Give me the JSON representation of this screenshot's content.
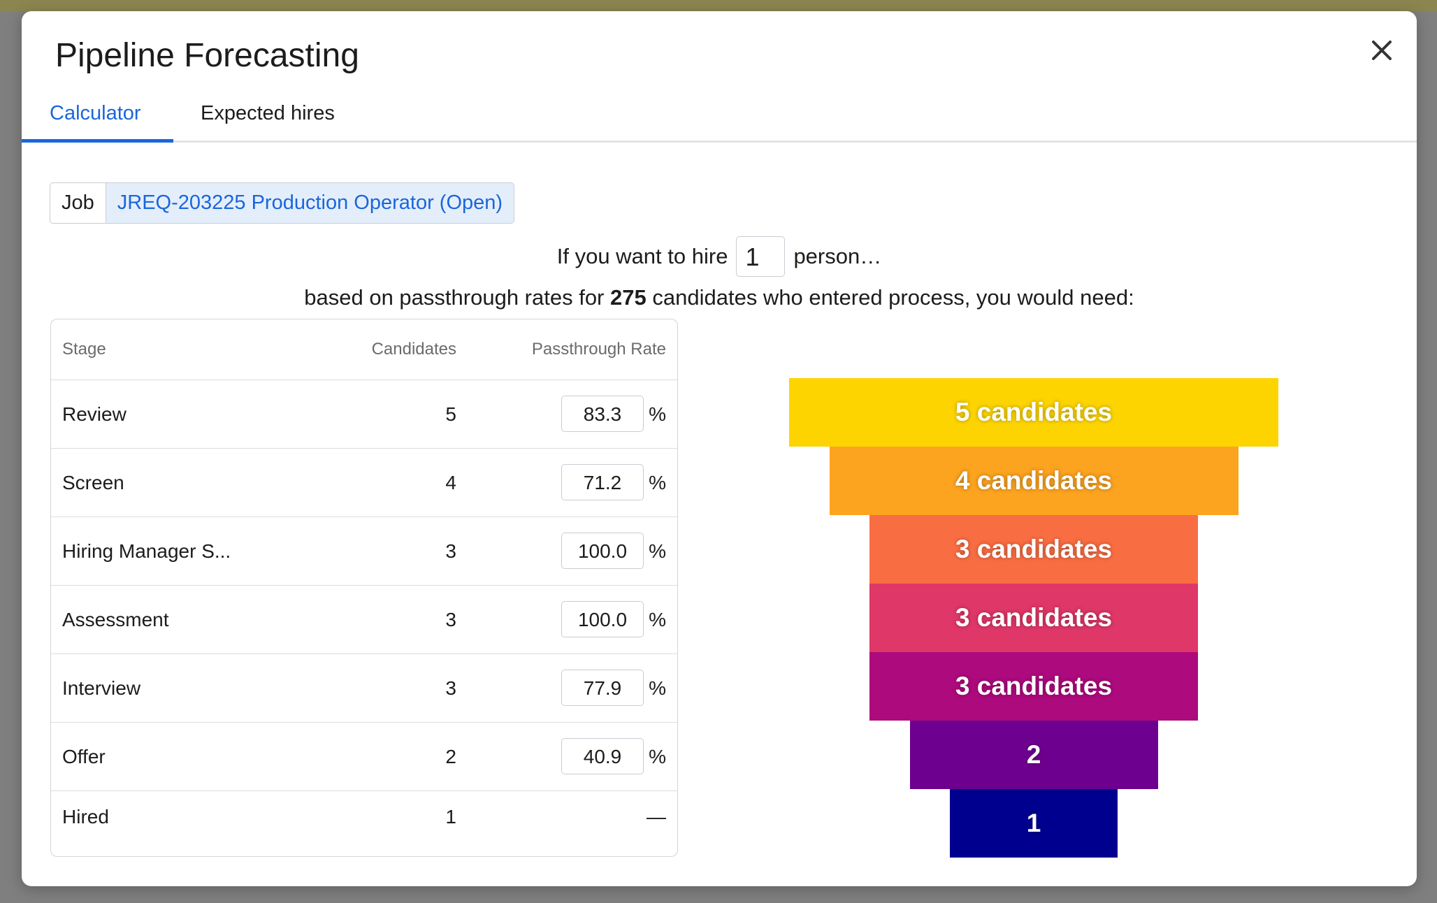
{
  "modal": {
    "title": "Pipeline Forecasting",
    "tabs": [
      "Calculator",
      "Expected hires"
    ]
  },
  "job": {
    "label": "Job",
    "value": "JREQ-203225 Production Operator (Open)"
  },
  "hire": {
    "prefix": "If you want to hire",
    "count": 1,
    "suffix": "person…"
  },
  "basis": {
    "prefix": "based on passthrough rates for",
    "total": 275,
    "suffix": "candidates who entered process, you would need:"
  },
  "table": {
    "headers": [
      "Stage",
      "Candidates",
      "Passthrough Rate"
    ],
    "percent": "%",
    "rows": [
      [
        "Review",
        5,
        "83.3"
      ],
      [
        "Screen",
        4,
        "71.2"
      ],
      [
        "Hiring Manager S...",
        3,
        "100.0"
      ],
      [
        "Assessment",
        3,
        "100.0"
      ],
      [
        "Interview",
        3,
        "77.9"
      ],
      [
        "Offer",
        2,
        "40.9"
      ],
      [
        "Hired",
        1,
        "—"
      ]
    ]
  },
  "funnel": {
    "values": [
      5,
      4,
      3,
      3,
      3,
      2,
      1
    ],
    "value_labels": [
      "5 candidates",
      "4 candidates",
      "3 candidates",
      "3 candidates",
      "3 candidates",
      "2",
      "1"
    ],
    "colors": [
      "#fdd400",
      "#fca31f",
      "#f96d43",
      "#df3767",
      "#ad0a7d",
      "#6e0090",
      "#00008f"
    ]
  }
}
